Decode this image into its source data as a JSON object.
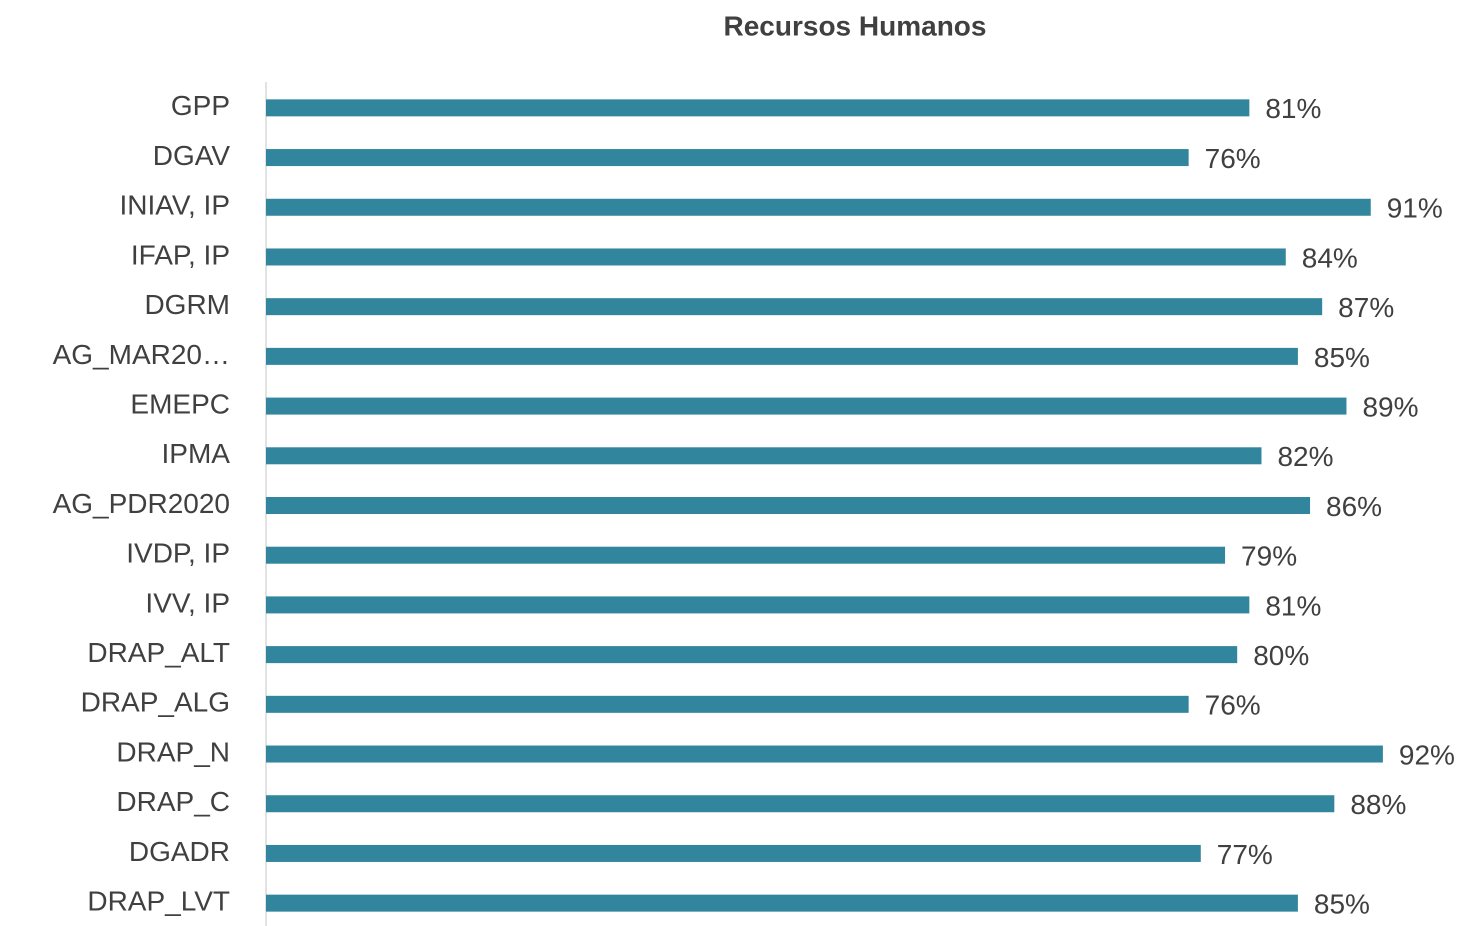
{
  "chart_data": {
    "type": "bar",
    "orientation": "horizontal",
    "title": "Recursos Humanos",
    "categories": [
      "GPP",
      "DGAV",
      "INIAV, IP",
      "IFAP, IP",
      "DGRM",
      "AG_MAR20…",
      "EMEPC",
      "IPMA",
      "AG_PDR2020",
      "IVDP, IP",
      "IVV, IP",
      "DRAP_ALT",
      "DRAP_ALG",
      "DRAP_N",
      "DRAP_C",
      "DGADR",
      "DRAP_LVT"
    ],
    "values": [
      81,
      76,
      91,
      84,
      87,
      85,
      89,
      82,
      86,
      79,
      81,
      80,
      76,
      92,
      88,
      77,
      85
    ],
    "value_labels": [
      "81%",
      "76%",
      "91%",
      "84%",
      "87%",
      "85%",
      "89%",
      "82%",
      "86%",
      "79%",
      "81%",
      "80%",
      "76%",
      "92%",
      "88%",
      "77%",
      "85%"
    ],
    "color": "#31859c",
    "xlim": [
      0,
      100
    ]
  }
}
